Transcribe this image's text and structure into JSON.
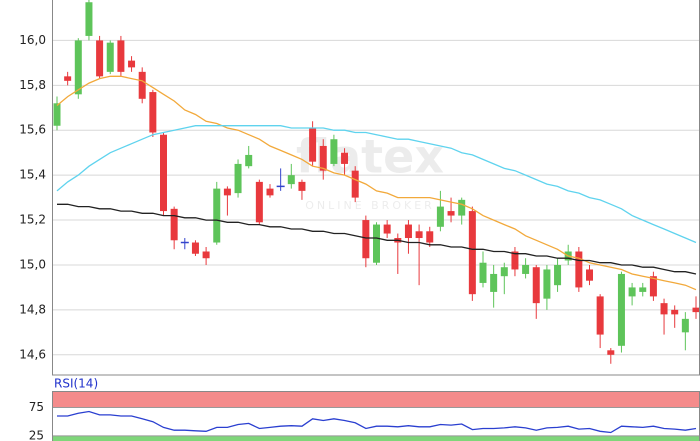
{
  "chart_data": [
    {
      "type": "candlestick",
      "watermark": {
        "logo": "flatex",
        "tagline": "ONLINE BROKER"
      },
      "up_color": "#5ec45a",
      "down_color": "#e8393d",
      "flat_color": "#3344cc",
      "ylim": [
        14.51,
        16.18
      ],
      "yticks": [
        {
          "value": 14.6,
          "label": "14,6"
        },
        {
          "value": 14.8,
          "label": "14,8"
        },
        {
          "value": 15.0,
          "label": "15,0"
        },
        {
          "value": 15.2,
          "label": "15,2"
        },
        {
          "value": 15.4,
          "label": "15,4"
        },
        {
          "value": 15.6,
          "label": "15,6"
        },
        {
          "value": 15.8,
          "label": "15,8"
        },
        {
          "value": 16.0,
          "label": "16,0"
        }
      ],
      "grid": true,
      "open": [
        15.62,
        15.84,
        15.76,
        16.02,
        16.0,
        15.86,
        16.0,
        15.91,
        15.86,
        15.77,
        15.58,
        15.25,
        15.1,
        15.1,
        15.06,
        15.1,
        15.34,
        15.32,
        15.44,
        15.37,
        15.34,
        15.35,
        15.36,
        15.37,
        15.61,
        15.53,
        15.45,
        15.5,
        15.42,
        15.2,
        15.01,
        15.18,
        15.12,
        15.18,
        15.15,
        15.15,
        15.17,
        15.24,
        15.22,
        15.24,
        14.92,
        14.88,
        14.95,
        15.06,
        14.96,
        14.99,
        14.85,
        14.91,
        15.02,
        15.06,
        14.98,
        14.86,
        14.62,
        14.64,
        14.86,
        14.88,
        14.95,
        14.83,
        14.8,
        14.7,
        14.81
      ],
      "high": [
        15.75,
        15.86,
        16.01,
        16.2,
        16.02,
        16.0,
        16.02,
        15.93,
        15.88,
        15.78,
        15.59,
        15.26,
        15.12,
        15.11,
        15.08,
        15.37,
        15.35,
        15.47,
        15.53,
        15.38,
        15.36,
        15.43,
        15.45,
        15.38,
        15.64,
        15.56,
        15.58,
        15.52,
        15.44,
        15.22,
        15.19,
        15.2,
        15.14,
        15.2,
        15.18,
        15.17,
        15.33,
        15.3,
        15.3,
        15.26,
        15.06,
        15.0,
        15.01,
        15.08,
        15.03,
        15.0,
        15.0,
        15.03,
        15.09,
        15.08,
        15.0,
        14.87,
        14.63,
        14.97,
        14.92,
        14.92,
        14.97,
        14.85,
        14.82,
        14.79,
        14.86
      ],
      "low": [
        15.6,
        15.8,
        15.74,
        16.0,
        15.83,
        15.85,
        15.84,
        15.86,
        15.72,
        15.57,
        15.22,
        15.07,
        15.07,
        15.04,
        15.0,
        15.09,
        15.22,
        15.3,
        15.43,
        15.18,
        15.3,
        15.33,
        15.34,
        15.29,
        15.44,
        15.38,
        15.44,
        15.4,
        15.28,
        14.99,
        15.0,
        15.12,
        14.96,
        15.05,
        14.91,
        15.08,
        15.15,
        15.19,
        15.18,
        14.84,
        14.9,
        14.81,
        14.87,
        14.95,
        14.94,
        14.76,
        14.8,
        14.88,
        15.0,
        14.88,
        14.91,
        14.63,
        14.56,
        14.61,
        14.82,
        14.86,
        14.84,
        14.69,
        14.72,
        14.62,
        14.76
      ],
      "close": [
        15.72,
        15.82,
        16.0,
        16.17,
        15.84,
        15.99,
        15.86,
        15.88,
        15.74,
        15.59,
        15.24,
        15.11,
        15.1,
        15.05,
        15.03,
        15.34,
        15.31,
        15.45,
        15.49,
        15.19,
        15.31,
        15.35,
        15.4,
        15.33,
        15.46,
        15.42,
        15.56,
        15.45,
        15.3,
        15.03,
        15.18,
        15.14,
        15.1,
        15.12,
        15.12,
        15.1,
        15.26,
        15.22,
        15.29,
        14.87,
        15.01,
        14.96,
        14.99,
        14.98,
        15.0,
        14.83,
        14.98,
        15.0,
        15.06,
        14.9,
        14.93,
        14.69,
        14.6,
        14.96,
        14.9,
        14.9,
        14.86,
        14.78,
        14.78,
        14.76,
        14.79
      ],
      "series": [
        {
          "color": "#f2a93b",
          "values": [
            15.71,
            15.75,
            15.78,
            15.81,
            15.83,
            15.84,
            15.84,
            15.83,
            15.82,
            15.79,
            15.76,
            15.73,
            15.69,
            15.67,
            15.64,
            15.63,
            15.61,
            15.6,
            15.58,
            15.56,
            15.53,
            15.51,
            15.49,
            15.47,
            15.44,
            15.43,
            15.41,
            15.4,
            15.38,
            15.36,
            15.33,
            15.32,
            15.3,
            15.3,
            15.3,
            15.3,
            15.29,
            15.28,
            15.27,
            15.25,
            15.22,
            15.2,
            15.18,
            15.16,
            15.13,
            15.11,
            15.09,
            15.07,
            15.04,
            15.03,
            15.01,
            15.0,
            14.99,
            14.98,
            14.96,
            14.95,
            14.94,
            14.93,
            14.92,
            14.91,
            14.89
          ]
        },
        {
          "color": "#5fd3ee",
          "values": [
            15.33,
            15.37,
            15.4,
            15.44,
            15.47,
            15.5,
            15.52,
            15.54,
            15.56,
            15.58,
            15.59,
            15.6,
            15.61,
            15.62,
            15.62,
            15.62,
            15.62,
            15.62,
            15.62,
            15.62,
            15.62,
            15.62,
            15.61,
            15.61,
            15.61,
            15.61,
            15.6,
            15.6,
            15.59,
            15.59,
            15.58,
            15.57,
            15.56,
            15.56,
            15.55,
            15.54,
            15.53,
            15.52,
            15.5,
            15.49,
            15.47,
            15.45,
            15.43,
            15.42,
            15.4,
            15.38,
            15.36,
            15.35,
            15.33,
            15.32,
            15.3,
            15.29,
            15.27,
            15.25,
            15.22,
            15.2,
            15.18,
            15.16,
            15.14,
            15.12,
            15.1
          ]
        },
        {
          "color": "#222222",
          "values": [
            15.27,
            15.27,
            15.26,
            15.26,
            15.25,
            15.25,
            15.24,
            15.24,
            15.23,
            15.23,
            15.22,
            15.22,
            15.21,
            15.21,
            15.2,
            15.2,
            15.19,
            15.19,
            15.18,
            15.18,
            15.17,
            15.17,
            15.16,
            15.16,
            15.15,
            15.15,
            15.14,
            15.14,
            15.13,
            15.12,
            15.12,
            15.11,
            15.11,
            15.1,
            15.1,
            15.09,
            15.09,
            15.08,
            15.08,
            15.07,
            15.07,
            15.06,
            15.06,
            15.05,
            15.05,
            15.04,
            15.04,
            15.03,
            15.03,
            15.02,
            15.02,
            15.01,
            15.01,
            15.0,
            15.0,
            14.99,
            14.99,
            14.98,
            14.97,
            14.97,
            14.96
          ]
        }
      ]
    },
    {
      "type": "line",
      "title": "RSI(14)",
      "title_color": "#2233cc",
      "ylim": [
        16,
        104
      ],
      "yticks": [
        25,
        75
      ],
      "grid": true,
      "upper_band_color": "#f48b8b",
      "lower_band_color": "#7fd67a",
      "series": [
        {
          "color": "#2a3fd0",
          "values": [
            60,
            60,
            65,
            68,
            62,
            62,
            60,
            60,
            55,
            50,
            40,
            35,
            35,
            34,
            33,
            40,
            40,
            45,
            47,
            38,
            40,
            42,
            43,
            42,
            55,
            52,
            55,
            52,
            48,
            38,
            42,
            42,
            41,
            43,
            41,
            41,
            45,
            44,
            46,
            36,
            38,
            38,
            39,
            41,
            39,
            35,
            39,
            40,
            42,
            37,
            38,
            33,
            31,
            42,
            41,
            40,
            42,
            38,
            37,
            35,
            38
          ]
        }
      ]
    }
  ]
}
